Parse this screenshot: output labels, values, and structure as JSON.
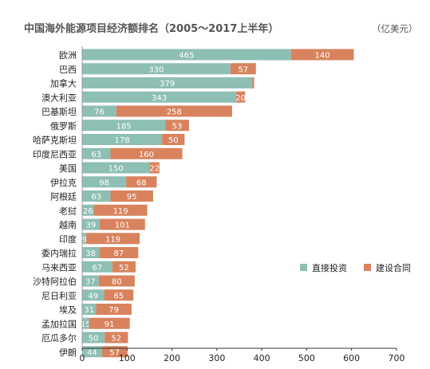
{
  "chart_data": {
    "type": "bar",
    "orientation": "horizontal",
    "stacked": true,
    "title": "中国海外能源项目经济额排名（2005～2017上半年）",
    "unit": "（亿美元）",
    "categories": [
      "欧洲",
      "巴西",
      "加拿大",
      "澳大利亚",
      "巴基斯坦",
      "俄罗斯",
      "哈萨克斯坦",
      "印度尼西亚",
      "美国",
      "伊拉克",
      "阿根廷",
      "老挝",
      "越南",
      "印度",
      "委内瑞拉",
      "马来西亚",
      "沙特阿拉伯",
      "尼日利亚",
      "埃及",
      "孟加拉国",
      "厄瓜多尔",
      "伊朗"
    ],
    "series": [
      {
        "name": "直接投资",
        "color": "#8ebfb4",
        "values": [
          465,
          330,
          379,
          343,
          76,
          185,
          178,
          63,
          150,
          98,
          63,
          26,
          39,
          9,
          38,
          67,
          37,
          49,
          31,
          15,
          50,
          44
        ],
        "labels": [
          "465",
          "330",
          "379",
          "343",
          "76",
          "185",
          "178",
          "63",
          "150",
          "98",
          "63",
          "26",
          "39",
          "9",
          "38",
          "67",
          "37",
          "49",
          "31",
          "15",
          "50",
          "44"
        ]
      },
      {
        "name": "建设合同",
        "color": "#d8835d",
        "values": [
          140,
          57,
          4,
          20,
          258,
          53,
          50,
          160,
          22,
          68,
          95,
          119,
          101,
          119,
          87,
          52,
          80,
          65,
          79,
          91,
          52,
          57
        ],
        "labels": [
          "140",
          "57",
          "",
          "20",
          "258",
          "53",
          "50",
          "160",
          "22",
          "68",
          "95",
          "119",
          "101",
          "119",
          "87",
          "52",
          "80",
          "65",
          "79",
          "91",
          "52",
          "57"
        ]
      }
    ],
    "xlim": [
      0,
      700
    ],
    "xticks": [
      "0",
      "100",
      "200",
      "300",
      "400",
      "500",
      "600",
      "700"
    ],
    "legend_position": "right-middle",
    "grid": false
  }
}
